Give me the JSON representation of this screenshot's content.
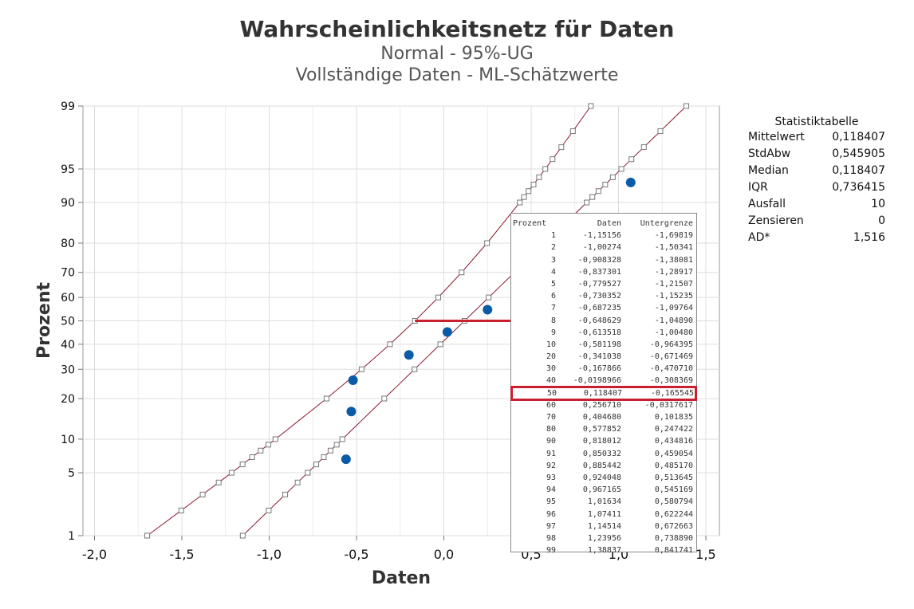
{
  "chart_data": {
    "type": "scatter",
    "title": "Wahrscheinlichkeitsnetz für Daten",
    "subtitle": "Normal  - 95%-UG",
    "subtitle2": "Vollständige Daten - ML-Schätzwerte",
    "xlabel": "Daten",
    "ylabel": "Prozent",
    "xlim": [
      -2.0,
      1.5
    ],
    "xticks": [
      "-2,0",
      "-1,5",
      "-1,0",
      "-0,5",
      "0,0",
      "0,5",
      "1,0",
      "1,5"
    ],
    "yscale": "normal-probability",
    "ylim": [
      1,
      99
    ],
    "yticks": [
      1,
      5,
      10,
      20,
      30,
      40,
      50,
      60,
      70,
      80,
      90,
      95,
      99
    ],
    "grid": true,
    "points": [
      {
        "x": -0.56,
        "y": 6.7
      },
      {
        "x": -0.53,
        "y": 16.3
      },
      {
        "x": -0.52,
        "y": 26.0
      },
      {
        "x": -0.2,
        "y": 35.6
      },
      {
        "x": 0.02,
        "y": 45.2
      },
      {
        "x": 0.25,
        "y": 54.8
      },
      {
        "x": 1.07,
        "y": 93.3
      }
    ],
    "reference_y": 50,
    "fit": {
      "mean": 0.118407,
      "sd": 0.545905
    },
    "lower_bound": {
      "y": [
        1,
        2,
        3,
        4,
        5,
        6,
        7,
        8,
        9,
        10,
        20,
        30,
        40,
        50,
        60,
        70,
        80,
        90,
        91,
        92,
        93,
        94,
        95,
        96,
        97,
        98,
        99
      ],
      "x": [
        -1.69819,
        -1.50341,
        -1.38081,
        -1.28917,
        -1.21507,
        -1.15235,
        -1.09764,
        -1.0489,
        -1.0048,
        -0.964395,
        -0.671469,
        -0.47071,
        -0.308369,
        -0.165545,
        -0.0317617,
        0.101835,
        0.247422,
        0.434816,
        0.459054,
        0.48517,
        0.513645,
        0.545169,
        0.580794,
        0.622244,
        0.672663,
        0.73889,
        0.841741
      ]
    },
    "line_color": "#8b1a2e",
    "point_color": "#0b5ba7",
    "highlight_color": "#c8202f"
  },
  "stats": {
    "title": "Statistiktabelle",
    "rows": [
      {
        "label": "Mittelwert",
        "value": "0,118407"
      },
      {
        "label": "StdAbw",
        "value": "0,545905"
      },
      {
        "label": "Median",
        "value": "0,118407"
      },
      {
        "label": "IQR",
        "value": "0,736415"
      },
      {
        "label": "Ausfall",
        "value": "10"
      },
      {
        "label": "Zensieren",
        "value": "0"
      },
      {
        "label": "AD*",
        "value": "1,516"
      }
    ]
  },
  "percentile_table": {
    "headers": [
      "Prozent",
      "Daten",
      "Untergrenze"
    ],
    "highlight_row": 13,
    "rows": [
      [
        "1",
        "-1,15156",
        "-1,69819"
      ],
      [
        "2",
        "-1,00274",
        "-1,50341"
      ],
      [
        "3",
        "-0,908328",
        "-1,38081"
      ],
      [
        "4",
        "-0,837301",
        "-1,28917"
      ],
      [
        "5",
        "-0,779527",
        "-1,21507"
      ],
      [
        "6",
        "-0,730352",
        "-1,15235"
      ],
      [
        "7",
        "-0,687235",
        "-1,09764"
      ],
      [
        "8",
        "-0,648629",
        "-1,04890"
      ],
      [
        "9",
        "-0,613518",
        "-1,00480"
      ],
      [
        "10",
        "-0,581198",
        "-0,964395"
      ],
      [
        "20",
        "-0,341038",
        "-0,671469"
      ],
      [
        "30",
        "-0,167866",
        "-0,470710"
      ],
      [
        "40",
        "-0,0198966",
        "-0,308369"
      ],
      [
        "50",
        "0,118407",
        "-0,165545"
      ],
      [
        "60",
        "0,256710",
        "-0,0317617"
      ],
      [
        "70",
        "0,404680",
        "0,101835"
      ],
      [
        "80",
        "0,577852",
        "0,247422"
      ],
      [
        "90",
        "0,818012",
        "0,434816"
      ],
      [
        "91",
        "0,850332",
        "0,459054"
      ],
      [
        "92",
        "0,885442",
        "0,485170"
      ],
      [
        "93",
        "0,924048",
        "0,513645"
      ],
      [
        "94",
        "0,967165",
        "0,545169"
      ],
      [
        "95",
        "1,01634",
        "0,580794"
      ],
      [
        "96",
        "1,07411",
        "0,622244"
      ],
      [
        "97",
        "1,14514",
        "0,672663"
      ],
      [
        "98",
        "1,23956",
        "0,738890"
      ],
      [
        "99",
        "1,38837",
        "0,841741"
      ]
    ]
  }
}
